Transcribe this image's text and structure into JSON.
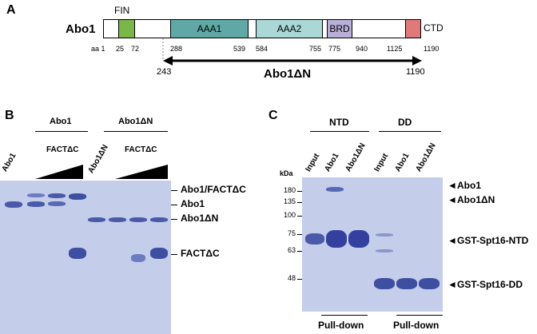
{
  "panelA": {
    "letter": "A",
    "protein": "Abo1",
    "fin_label": "FIN",
    "ctd_label": "CTD",
    "domains": {
      "aaa1": "AAA1",
      "aaa2": "AAA2",
      "brd": "BRD"
    },
    "aa_prefix": "aa 1",
    "positions": [
      "25",
      "72",
      "288",
      "539",
      "584",
      "755",
      "775",
      "940",
      "1125",
      "1190"
    ],
    "truncation_start": "243",
    "truncation_end": "1190",
    "truncation_label": "Abo1ΔN",
    "colors": {
      "fin": "#7ab648",
      "aaa1": "#5fa8a6",
      "aaa2": "#a9d8d6",
      "brd": "#b8b0d8",
      "ctd": "#e07a7a"
    }
  },
  "panelB": {
    "letter": "B",
    "group1": "Abo1",
    "group2": "Abo1ΔN",
    "fact1": "FACTΔC",
    "fact2": "FACTΔC",
    "lane1": "Abo1",
    "lane2": "Abo1ΔN",
    "right_labels": [
      "Abo1/FACTΔC",
      "Abo1",
      "Abo1ΔN",
      "FACTΔC"
    ]
  },
  "panelC": {
    "letter": "C",
    "group1": "NTD",
    "group2": "DD",
    "lanes": [
      "Input",
      "Abo1",
      "Abo1ΔN",
      "Input",
      "Abo1",
      "Abo1ΔN"
    ],
    "kda": "kDa",
    "markers": [
      "180",
      "135",
      "100",
      "75",
      "63",
      "48"
    ],
    "right_labels": [
      "Abo1",
      "Abo1ΔN",
      "GST-Spt16-NTD",
      "GST-Spt16-DD"
    ],
    "pulldown1": "Pull-down",
    "pulldown2": "Pull-down",
    "gel_color": "#c4cdea"
  }
}
